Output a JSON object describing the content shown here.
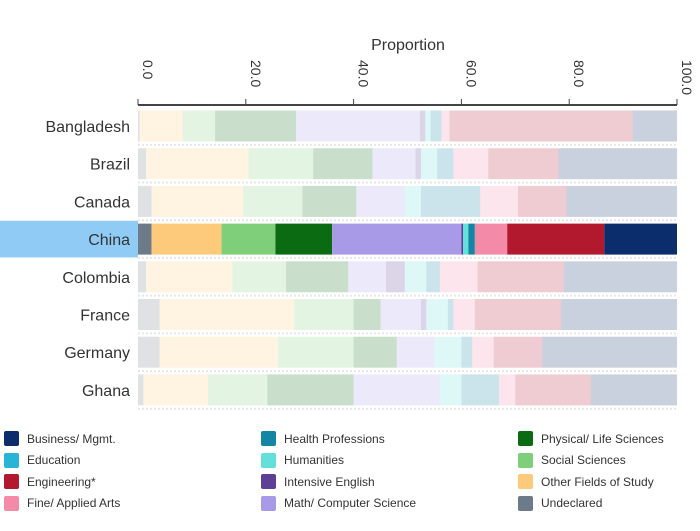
{
  "chart_data": {
    "type": "bar",
    "orientation": "horizontal-stacked",
    "title": "Proportion",
    "xlim": [
      0,
      100
    ],
    "x_ticks": [
      "0.0",
      "20.0",
      "40.0",
      "60.0",
      "80.0",
      "100.0"
    ],
    "tick_values": [
      0,
      20,
      40,
      60,
      80,
      100
    ],
    "categories": [
      "Bangladesh",
      "Brazil",
      "Canada",
      "China",
      "Colombia",
      "France",
      "Germany",
      "Ghana"
    ],
    "highlighted": "China",
    "series": [
      {
        "name": "Undeclared",
        "color": "#6c7a89",
        "values": [
          0.3,
          1.5,
          2.5,
          2.5,
          1.5,
          4,
          4,
          1
        ]
      },
      {
        "name": "Other Fields of Study",
        "color": "#fdc97a",
        "values": [
          8,
          19,
          17,
          13,
          16,
          25,
          22,
          12
        ]
      },
      {
        "name": "Social Sciences",
        "color": "#7fcf7a",
        "values": [
          6,
          12,
          11,
          10,
          10,
          11,
          14,
          11
        ]
      },
      {
        "name": "Physical/ Life Sciences",
        "color": "#0b6b12",
        "values": [
          15,
          11,
          10,
          10.5,
          11.5,
          5,
          8,
          16
        ]
      },
      {
        "name": "Math/ Computer Science",
        "color": "#a99ae8",
        "values": [
          23,
          8,
          9,
          24,
          7,
          7.5,
          7,
          16
        ]
      },
      {
        "name": "Intensive English",
        "color": "#5e3f96",
        "values": [
          1,
          1,
          0,
          0.3,
          3.5,
          1,
          0,
          0
        ]
      },
      {
        "name": "Humanities",
        "color": "#64e0da",
        "values": [
          1,
          3,
          3,
          1,
          4,
          4,
          5,
          4
        ]
      },
      {
        "name": "Health Professions",
        "color": "#1386a6",
        "values": [
          2,
          3,
          11,
          1.2,
          2.5,
          1,
          2,
          7
        ]
      },
      {
        "name": "Education",
        "color": "#27b4d6",
        "values": [
          0,
          0,
          0,
          0,
          0,
          0,
          0,
          0
        ]
      },
      {
        "name": "Fine/ Applied Arts",
        "color": "#f38aa8",
        "values": [
          1.5,
          6.5,
          7,
          6,
          7,
          4,
          4,
          3
        ]
      },
      {
        "name": "Engineering*",
        "color": "#b3192e",
        "values": [
          34,
          13,
          9,
          18,
          16,
          16,
          9,
          14
        ]
      },
      {
        "name": "Business/ Mgmt.",
        "color": "#0c2d6b",
        "values": [
          8.2,
          22,
          20.5,
          13.5,
          21,
          21.5,
          25,
          16
        ]
      }
    ]
  },
  "legend": [
    {
      "label": "Business/ Mgmt.",
      "color": "#0c2d6b"
    },
    {
      "label": "Education",
      "color": "#27b4d6"
    },
    {
      "label": "Engineering*",
      "color": "#b3192e"
    },
    {
      "label": "Fine/ Applied Arts",
      "color": "#f38aa8"
    },
    {
      "label": "Health Professions",
      "color": "#1386a6"
    },
    {
      "label": "Humanities",
      "color": "#64e0da"
    },
    {
      "label": "Intensive English",
      "color": "#5e3f96"
    },
    {
      "label": "Math/ Computer Science",
      "color": "#a99ae8"
    },
    {
      "label": "Physical/ Life Sciences",
      "color": "#0b6b12"
    },
    {
      "label": "Social Sciences",
      "color": "#7fcf7a"
    },
    {
      "label": "Other Fields of Study",
      "color": "#fdc97a"
    },
    {
      "label": "Undeclared",
      "color": "#6c7a89"
    }
  ],
  "colors": {
    "highlight_band": "#8fcbf5",
    "axis": "#444444"
  }
}
